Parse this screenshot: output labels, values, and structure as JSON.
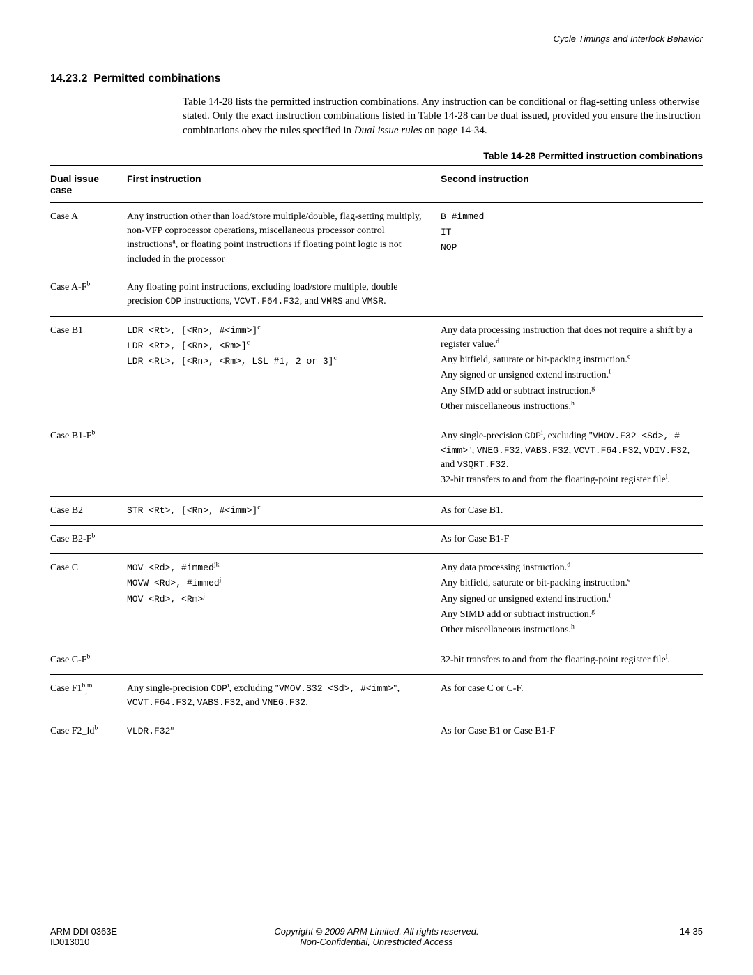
{
  "header": {
    "running_title": "Cycle Timings and Interlock Behavior"
  },
  "section": {
    "number": "14.23.2",
    "title": "Permitted combinations",
    "intro": "Table 14-28 lists the permitted instruction combinations. Any instruction can be conditional or flag-setting unless otherwise stated. Only the exact instruction combinations listed in Table 14-28 can be dual issued, provided you ensure the instruction combinations obey the rules specified in ",
    "intro_italic": "Dual issue rules",
    "intro_tail": " on page 14-34."
  },
  "table": {
    "caption": "Table 14-28 Permitted instruction combinations",
    "columns": [
      "Dual issue case",
      "First instruction",
      "Second instruction"
    ],
    "rows": {
      "caseA": {
        "case": "Case A",
        "first": "Any instruction other than load/store multiple/double, flag-setting multiply, non-VFP coprocessor operations, miscellaneous processor control instructions",
        "first_sup": "a",
        "first_tail": ", or floating point instructions if floating point logic is not included in the processor",
        "second_l1": "B #immed",
        "second_l2": "IT",
        "second_l3": "NOP"
      },
      "caseAF": {
        "case": "Case A-F",
        "case_sup": "b",
        "first": "Any floating point instructions, excluding load/store multiple, double precision ",
        "first_mono": "CDP",
        "first_mid": " instructions, ",
        "first_mono2": "VCVT.F64.F32",
        "first_tail": ", and ",
        "first_mono3": "VMRS",
        "first_tail2": " and ",
        "first_mono4": "VMSR",
        "first_tail3": "."
      },
      "caseB1": {
        "case": "Case B1",
        "first_l1": "LDR <Rt>, [<Rn>, #<imm>]",
        "first_l1_sup": "c",
        "first_l2": "LDR <Rt>, [<Rn>, <Rm>]",
        "first_l2_sup": "c",
        "first_l3": "LDR <Rt>, [<Rn>, <Rm>, LSL #1, 2 or 3]",
        "first_l3_sup": "c",
        "second_l1": "Any data processing instruction that does not require a shift by a register value.",
        "second_l1_sup": "d",
        "second_l2": "Any bitfield, saturate or bit-packing instruction.",
        "second_l2_sup": "e",
        "second_l3": "Any signed or unsigned extend instruction.",
        "second_l3_sup": "f",
        "second_l4": "Any SIMD add or subtract instruction.",
        "second_l4_sup": "g",
        "second_l5": "Other miscellaneous instructions.",
        "second_l5_sup": "h"
      },
      "caseB1F": {
        "case": "Case B1-F",
        "case_sup": "b",
        "second_l1a": "Any single-precision ",
        "second_l1_mono": "CDP",
        "second_l1_sup": "i",
        "second_l1b": ", excluding \"",
        "second_l1_mono2": "VMOV.F32 <Sd>, #<imm>",
        "second_l1c": "\", ",
        "second_l1_mono3": "VNEG.F32",
        "second_l1d": ", ",
        "second_l1_mono4": "VABS.F32",
        "second_l1e": ", ",
        "second_l1_mono5": "VCVT.F64.F32",
        "second_l1f": ", ",
        "second_l1_mono6": "VDIV.F32",
        "second_l1g": ", and ",
        "second_l1_mono7": "VSQRT.F32",
        "second_l1h": ".",
        "second_l2": "32-bit transfers to and from the floating-point register file",
        "second_l2_sup": "l",
        "second_l2_tail": "."
      },
      "caseB2": {
        "case": "Case B2",
        "first": "STR <Rt>, [<Rn>, #<imm>]",
        "first_sup": "c",
        "second": "As for Case B1."
      },
      "caseB2F": {
        "case": "Case B2-F",
        "case_sup": "b",
        "second": "As for Case B1-F"
      },
      "caseC": {
        "case": "Case C",
        "first_l1": "MOV <Rd>, #immed",
        "first_l1_sup": "jk",
        "first_l2": "MOVW <Rd>, #immed",
        "first_l2_sup": "j",
        "first_l3": "MOV <Rd>, <Rm>",
        "first_l3_sup": "j",
        "second_l1": "Any data processing instruction.",
        "second_l1_sup": "d",
        "second_l2": "Any bitfield, saturate or bit-packing instruction.",
        "second_l2_sup": "e",
        "second_l3": "Any signed or unsigned extend instruction.",
        "second_l3_sup": "f",
        "second_l4": "Any SIMD add or subtract instruction.",
        "second_l4_sup": "g",
        "second_l5": "Other miscellaneous instructions.",
        "second_l5_sup": "h"
      },
      "caseCF": {
        "case": "Case C-F",
        "case_sup": "b",
        "second": "32-bit transfers to and from the floating-point register file",
        "second_sup": "l",
        "second_tail": "."
      },
      "caseF1": {
        "case": "Case F1",
        "case_sup": "b",
        "case_sup2": "m",
        "first_a": "Any single-precision ",
        "first_mono1": "CDP",
        "first_sup1": "i",
        "first_b": ", excluding \"",
        "first_mono2": "VMOV.S32 <Sd>, #<imm>",
        "first_c": "\", ",
        "first_mono3": "VCVT.F64.F32",
        "first_d": ", ",
        "first_mono4": "VABS.F32",
        "first_e": ", and ",
        "first_mono5": "VNEG.F32",
        "first_f": ".",
        "second": "As for case C or C-F."
      },
      "caseF2": {
        "case": "Case F2_ld",
        "case_sup": "b",
        "first": "VLDR.F32",
        "first_sup": "n",
        "second": "As for Case B1 or Case B1-F"
      }
    }
  },
  "footer": {
    "left_l1": "ARM DDI 0363E",
    "left_l2": "ID013010",
    "center_l1": "Copyright © 2009 ARM Limited. All rights reserved.",
    "center_l2": "Non-Confidential, Unrestricted Access",
    "right": "14-35"
  }
}
